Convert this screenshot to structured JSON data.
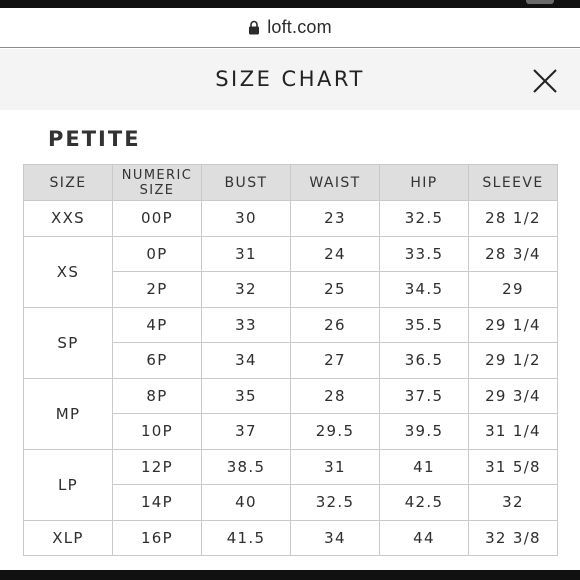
{
  "browser": {
    "url": "loft.com",
    "lock_icon": "lock-icon"
  },
  "modal": {
    "title": "SIZE CHART",
    "close_icon": "close-icon"
  },
  "section": {
    "title": "PETITE"
  },
  "table": {
    "headers": {
      "size": "SIZE",
      "numeric_line1": "NUMERIC",
      "numeric_line2": "SIZE",
      "bust": "BUST",
      "waist": "WAIST",
      "hip": "HIP",
      "sleeve": "SLEEVE"
    },
    "groups": [
      {
        "size": "XXS",
        "rows": [
          {
            "numeric": "00P",
            "bust": "30",
            "waist": "23",
            "hip": "32.5",
            "sleeve": "28 1/2"
          }
        ]
      },
      {
        "size": "XS",
        "rows": [
          {
            "numeric": "0P",
            "bust": "31",
            "waist": "24",
            "hip": "33.5",
            "sleeve": "28 3/4"
          },
          {
            "numeric": "2P",
            "bust": "32",
            "waist": "25",
            "hip": "34.5",
            "sleeve": "29"
          }
        ]
      },
      {
        "size": "SP",
        "rows": [
          {
            "numeric": "4P",
            "bust": "33",
            "waist": "26",
            "hip": "35.5",
            "sleeve": "29 1/4"
          },
          {
            "numeric": "6P",
            "bust": "34",
            "waist": "27",
            "hip": "36.5",
            "sleeve": "29 1/2"
          }
        ]
      },
      {
        "size": "MP",
        "rows": [
          {
            "numeric": "8P",
            "bust": "35",
            "waist": "28",
            "hip": "37.5",
            "sleeve": "29 3/4"
          },
          {
            "numeric": "10P",
            "bust": "37",
            "waist": "29.5",
            "hip": "39.5",
            "sleeve": "31 1/4"
          }
        ]
      },
      {
        "size": "LP",
        "rows": [
          {
            "numeric": "12P",
            "bust": "38.5",
            "waist": "31",
            "hip": "41",
            "sleeve": "31 5/8"
          },
          {
            "numeric": "14P",
            "bust": "40",
            "waist": "32.5",
            "hip": "42.5",
            "sleeve": "32"
          }
        ]
      },
      {
        "size": "XLP",
        "rows": [
          {
            "numeric": "16P",
            "bust": "41.5",
            "waist": "34",
            "hip": "44",
            "sleeve": "32 3/8"
          }
        ]
      }
    ]
  }
}
